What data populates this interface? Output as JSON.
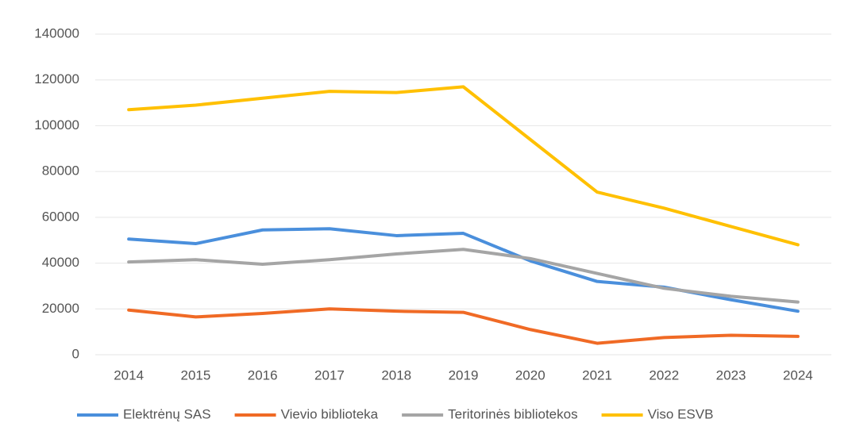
{
  "chart_data": {
    "type": "line",
    "categories": [
      "2014",
      "2015",
      "2016",
      "2017",
      "2018",
      "2019",
      "2020",
      "2021",
      "2022",
      "2023",
      "2024"
    ],
    "series": [
      {
        "name": "Elektrėnų SAS",
        "color": "#4a8fdc",
        "values": [
          50500,
          48500,
          54500,
          55000,
          52000,
          53000,
          41000,
          32000,
          29500,
          24000,
          19000
        ]
      },
      {
        "name": "Vievio biblioteka",
        "color": "#f06a25",
        "values": [
          19500,
          16500,
          18000,
          20000,
          19000,
          18500,
          11000,
          5000,
          7500,
          8500,
          8000
        ]
      },
      {
        "name": "Teritorinės bibliotekos",
        "color": "#a5a5a5",
        "values": [
          40500,
          41500,
          39500,
          41500,
          44000,
          46000,
          42000,
          35500,
          29000,
          25500,
          23000
        ]
      },
      {
        "name": "Viso ESVB",
        "color": "#ffc000",
        "values": [
          107000,
          109000,
          112000,
          115000,
          114500,
          117000,
          94000,
          71000,
          64000,
          56000,
          48000
        ]
      }
    ],
    "ylim": [
      0,
      140000
    ],
    "yticks": [
      0,
      20000,
      40000,
      60000,
      80000,
      100000,
      120000,
      140000
    ],
    "grid": true,
    "legend": "bottom"
  }
}
